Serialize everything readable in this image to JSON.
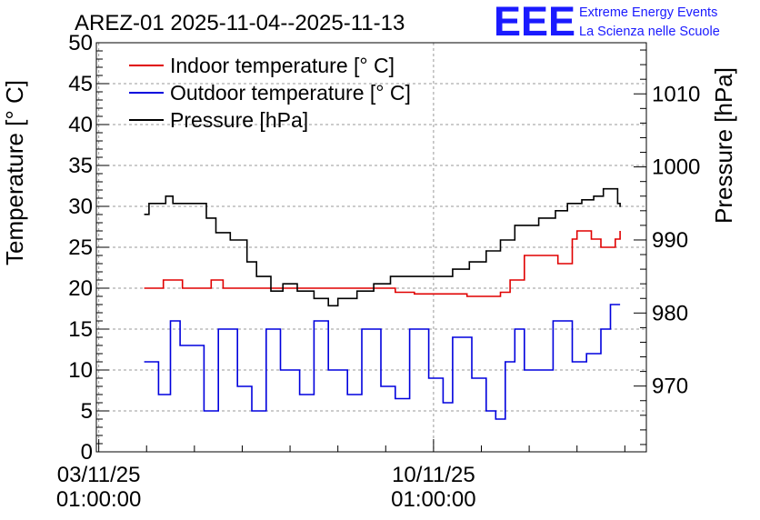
{
  "chart_data": {
    "type": "line",
    "title": "AREZ-01 2025-11-04--2025-11-13",
    "brand": {
      "logo_text": "EEE",
      "line1": "Extreme Energy Events",
      "line2": "La Scienza nelle Scuole",
      "color": "#1a1aff"
    },
    "ylabel_left": "Temperature [° C]",
    "ylabel_right": "Pressure [hPa]",
    "ylim_left": [
      0,
      50
    ],
    "ylim_right": [
      961,
      1017
    ],
    "xlim_days": [
      -0.05,
      11.45
    ],
    "yticks_left": [
      "0",
      "5",
      "10",
      "15",
      "20",
      "25",
      "30",
      "35",
      "40",
      "45",
      "50"
    ],
    "yticks_right": [
      "970",
      "980",
      "990",
      "1000",
      "1010"
    ],
    "xticks": [
      {
        "day": 0,
        "line1": "03/11/25",
        "line2": "01:00:00"
      },
      {
        "day": 7,
        "line1": "10/11/25",
        "line2": "01:00:00"
      }
    ],
    "grid": true,
    "legend": [
      {
        "label": "Indoor temperature [° C]",
        "color": "#e00000"
      },
      {
        "label": "Outdoor temperature [° C]",
        "color": "#0000dd"
      },
      {
        "label": "Pressure [hPa]",
        "color": "#000000"
      }
    ],
    "series": [
      {
        "name": "Indoor temperature [° C]",
        "axis": "left",
        "color": "#e00000",
        "points": [
          [
            0.95,
            20
          ],
          [
            1.3,
            20
          ],
          [
            1.35,
            21
          ],
          [
            1.7,
            21
          ],
          [
            1.75,
            20
          ],
          [
            2.3,
            20
          ],
          [
            2.35,
            21
          ],
          [
            2.55,
            21
          ],
          [
            2.6,
            20
          ],
          [
            3.6,
            20
          ],
          [
            3.8,
            20
          ],
          [
            4.7,
            20
          ],
          [
            5.2,
            20
          ],
          [
            6.2,
            19.5
          ],
          [
            6.6,
            19.3
          ],
          [
            7.7,
            19
          ],
          [
            8.2,
            19
          ],
          [
            8.4,
            19.5
          ],
          [
            8.6,
            21
          ],
          [
            8.9,
            24
          ],
          [
            9.6,
            23
          ],
          [
            9.9,
            26
          ],
          [
            10.0,
            27
          ],
          [
            10.2,
            27
          ],
          [
            10.3,
            26
          ],
          [
            10.5,
            25
          ],
          [
            10.7,
            25
          ],
          [
            10.8,
            26
          ],
          [
            10.9,
            27
          ]
        ]
      },
      {
        "name": "Outdoor temperature [° C]",
        "axis": "left",
        "color": "#0000dd",
        "points": [
          [
            0.95,
            11
          ],
          [
            1.25,
            7
          ],
          [
            1.5,
            16
          ],
          [
            1.7,
            13
          ],
          [
            2.2,
            5
          ],
          [
            2.5,
            15
          ],
          [
            2.9,
            8
          ],
          [
            3.2,
            5
          ],
          [
            3.5,
            15
          ],
          [
            3.8,
            10
          ],
          [
            4.2,
            7
          ],
          [
            4.5,
            16
          ],
          [
            4.8,
            10
          ],
          [
            5.2,
            7
          ],
          [
            5.5,
            15
          ],
          [
            5.9,
            8
          ],
          [
            6.2,
            6.5
          ],
          [
            6.5,
            15
          ],
          [
            6.9,
            9
          ],
          [
            7.2,
            6
          ],
          [
            7.4,
            14
          ],
          [
            7.8,
            9
          ],
          [
            8.1,
            5
          ],
          [
            8.3,
            4
          ],
          [
            8.5,
            11
          ],
          [
            8.7,
            15
          ],
          [
            8.9,
            10
          ],
          [
            9.5,
            16
          ],
          [
            9.9,
            11
          ],
          [
            10.2,
            12
          ],
          [
            10.5,
            15
          ],
          [
            10.7,
            18
          ],
          [
            10.9,
            18
          ]
        ]
      },
      {
        "name": "Pressure [hPa]",
        "axis": "right",
        "color": "#000000",
        "points": [
          [
            0.95,
            993.5
          ],
          [
            1.05,
            995
          ],
          [
            1.3,
            995
          ],
          [
            1.4,
            996
          ],
          [
            1.55,
            995
          ],
          [
            1.65,
            995
          ],
          [
            1.75,
            995
          ],
          [
            1.95,
            995
          ],
          [
            2.15,
            995
          ],
          [
            2.25,
            993
          ],
          [
            2.45,
            991
          ],
          [
            2.75,
            990
          ],
          [
            3.1,
            987
          ],
          [
            3.3,
            985
          ],
          [
            3.6,
            983
          ],
          [
            3.85,
            984
          ],
          [
            4.15,
            983
          ],
          [
            4.5,
            982
          ],
          [
            4.8,
            981
          ],
          [
            5.0,
            982
          ],
          [
            5.4,
            983
          ],
          [
            5.75,
            984
          ],
          [
            6.1,
            985
          ],
          [
            6.4,
            985
          ],
          [
            6.8,
            985
          ],
          [
            7.1,
            985
          ],
          [
            7.4,
            986
          ],
          [
            7.75,
            987
          ],
          [
            8.1,
            988.5
          ],
          [
            8.4,
            990
          ],
          [
            8.7,
            992
          ],
          [
            9.2,
            993
          ],
          [
            9.55,
            994
          ],
          [
            9.8,
            995
          ],
          [
            10.1,
            995.5
          ],
          [
            10.35,
            996
          ],
          [
            10.55,
            997
          ],
          [
            10.75,
            997
          ],
          [
            10.85,
            995
          ],
          [
            10.9,
            994.5
          ]
        ]
      }
    ]
  }
}
